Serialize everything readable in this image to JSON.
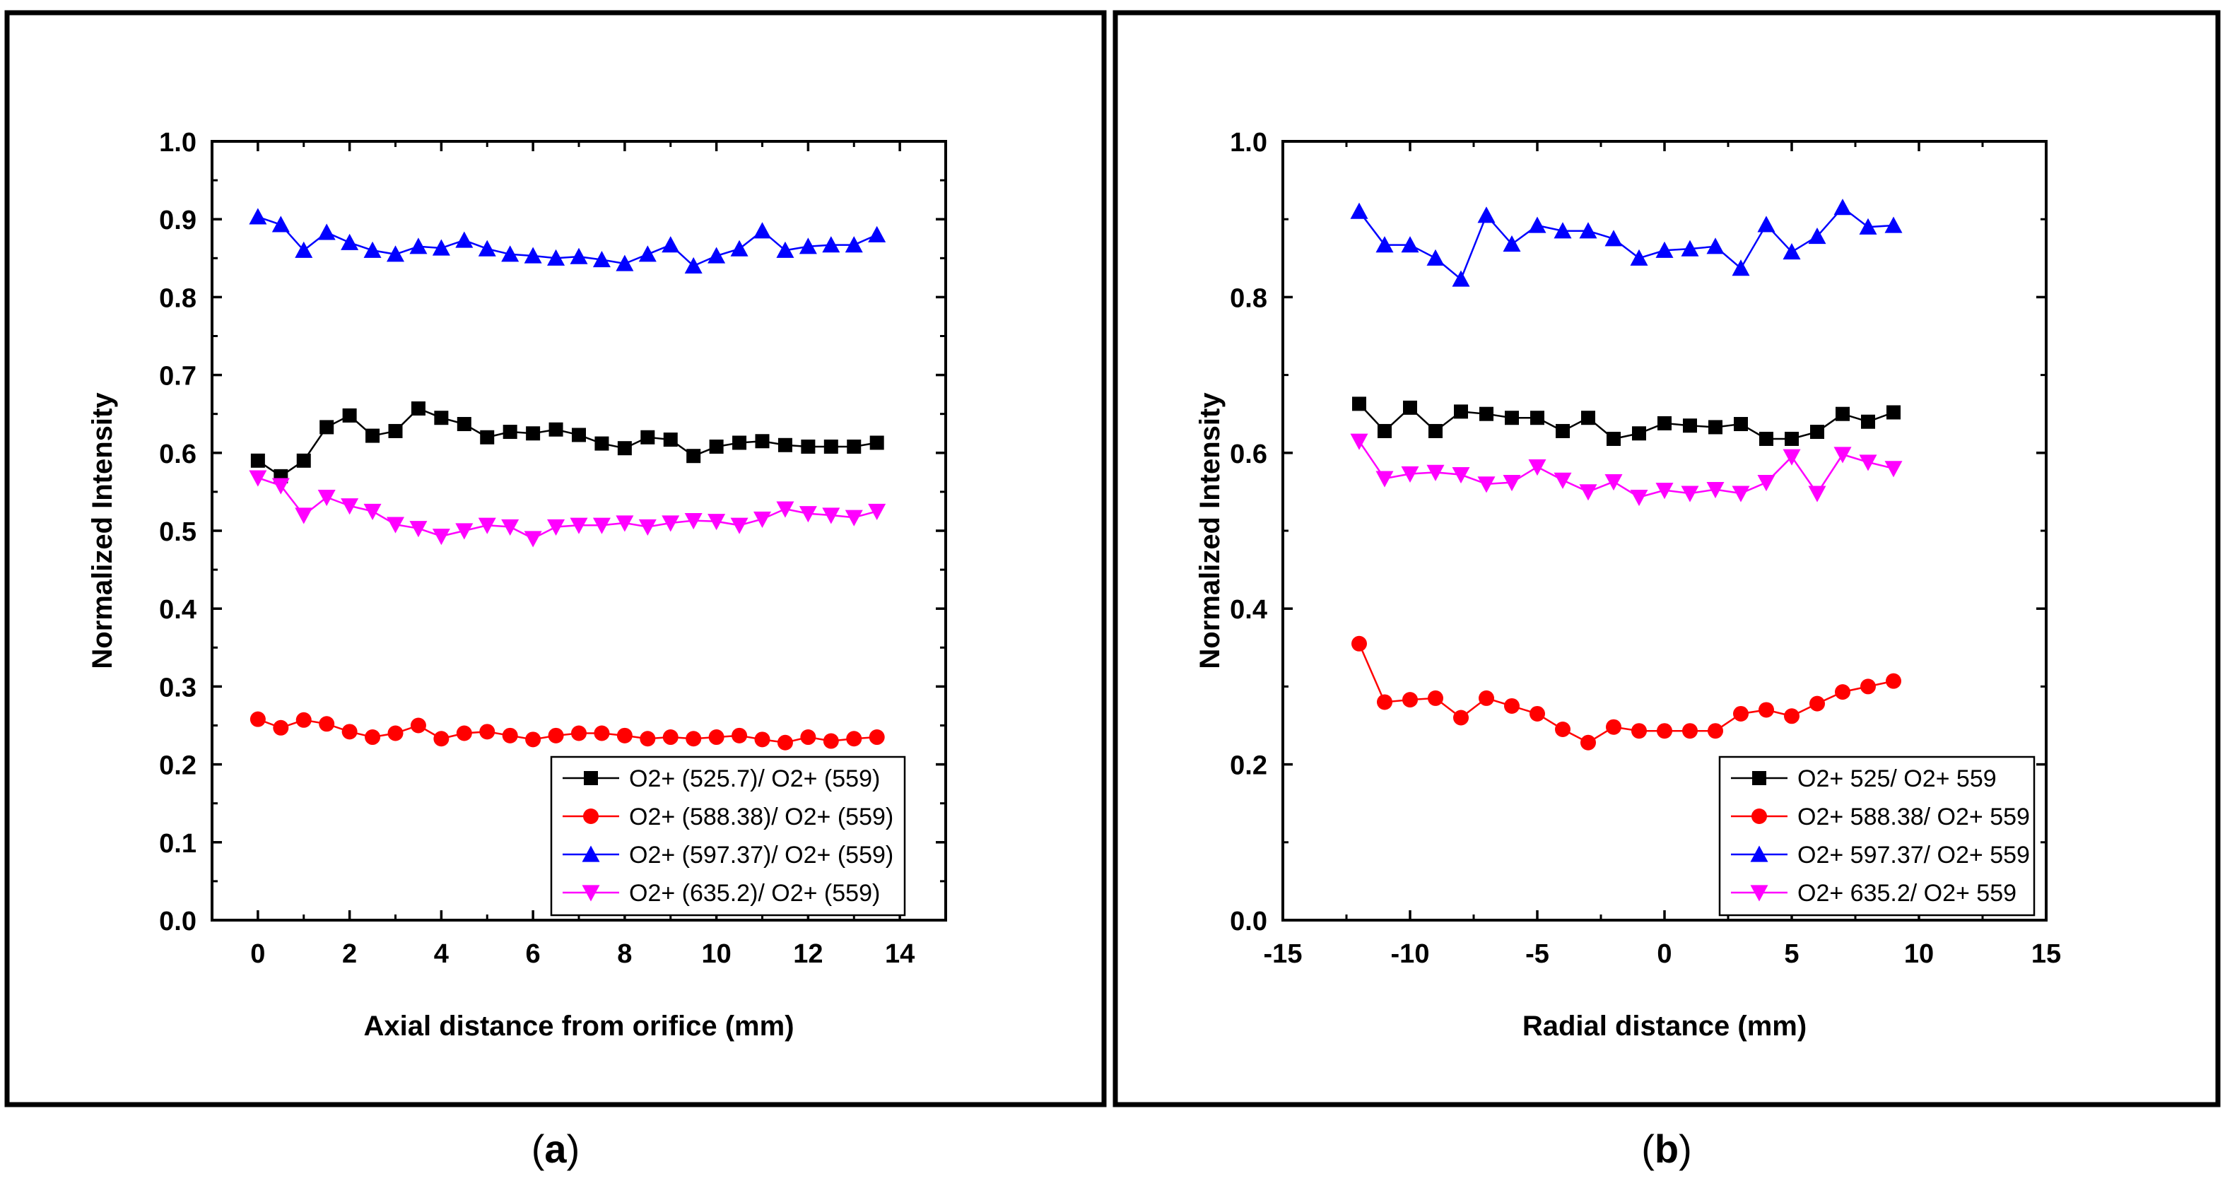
{
  "colors": {
    "frame": "#000000",
    "series": [
      "#000000",
      "#ff0000",
      "#0000ff",
      "#ff00ff"
    ]
  },
  "panel_labels": {
    "a_letter": "a",
    "b_letter": "b"
  },
  "chart_data": [
    {
      "type": "line",
      "panel": "a",
      "xlabel": "Axial distance from orifice (mm)",
      "ylabel": "Normalized Intensity",
      "xlim": [
        -1,
        15
      ],
      "ylim": [
        0,
        1
      ],
      "xticks": [
        0,
        2,
        4,
        6,
        8,
        10,
        12,
        14
      ],
      "xtick_labels": [
        "0",
        "2",
        "4",
        "6",
        "8",
        "10",
        "12",
        "14"
      ],
      "yticks": [
        0,
        0.1,
        0.2,
        0.3,
        0.4,
        0.5,
        0.6,
        0.7,
        0.8,
        0.9,
        1.0
      ],
      "ytick_labels": [
        "0.0",
        "0.1",
        "0.2",
        "0.3",
        "0.4",
        "0.5",
        "0.6",
        "0.7",
        "0.8",
        "0.9",
        "1.0"
      ],
      "legend_position": "bottom-right",
      "x": [
        0,
        0.5,
        1,
        1.5,
        2,
        2.5,
        3,
        3.5,
        4,
        4.5,
        5,
        5.5,
        6,
        6.5,
        7,
        7.5,
        8,
        8.5,
        9,
        9.5,
        10,
        10.5,
        11,
        11.5,
        12,
        12.5,
        13,
        13.5
      ],
      "series": [
        {
          "name": "O2+ (525.7)/ O2+ (559)",
          "marker": "square",
          "color": "#000000",
          "values": [
            0.59,
            0.57,
            0.59,
            0.633,
            0.648,
            0.622,
            0.628,
            0.657,
            0.645,
            0.637,
            0.62,
            0.627,
            0.625,
            0.63,
            0.623,
            0.612,
            0.606,
            0.62,
            0.617,
            0.596,
            0.608,
            0.613,
            0.615,
            0.61,
            0.608,
            0.608,
            0.608,
            0.613
          ]
        },
        {
          "name": "O2+ (588.38)/ O2+ (559)",
          "marker": "circle",
          "color": "#ff0000",
          "values": [
            0.258,
            0.247,
            0.257,
            0.252,
            0.242,
            0.235,
            0.24,
            0.25,
            0.233,
            0.24,
            0.242,
            0.237,
            0.232,
            0.237,
            0.24,
            0.24,
            0.237,
            0.233,
            0.235,
            0.233,
            0.235,
            0.237,
            0.232,
            0.228,
            0.235,
            0.23,
            0.233,
            0.235
          ]
        },
        {
          "name": "O2+ (597.37)/ O2+ (559)",
          "marker": "triangle-up",
          "color": "#0000ff",
          "values": [
            0.903,
            0.893,
            0.86,
            0.883,
            0.87,
            0.86,
            0.855,
            0.865,
            0.863,
            0.873,
            0.862,
            0.855,
            0.853,
            0.85,
            0.852,
            0.848,
            0.843,
            0.855,
            0.867,
            0.84,
            0.853,
            0.862,
            0.885,
            0.86,
            0.865,
            0.867,
            0.867,
            0.88
          ]
        },
        {
          "name": "O2+ (635.2)/ O2+ (559)",
          "marker": "triangle-down",
          "color": "#ff00ff",
          "values": [
            0.568,
            0.558,
            0.52,
            0.543,
            0.532,
            0.525,
            0.508,
            0.503,
            0.493,
            0.5,
            0.507,
            0.505,
            0.49,
            0.505,
            0.507,
            0.507,
            0.51,
            0.505,
            0.51,
            0.513,
            0.512,
            0.507,
            0.515,
            0.528,
            0.522,
            0.52,
            0.517,
            0.525
          ]
        }
      ]
    },
    {
      "type": "line",
      "panel": "b",
      "xlabel": "Radial distance (mm)",
      "ylabel": "Normalized Intensity",
      "xlim": [
        -15,
        15
      ],
      "ylim": [
        0,
        1
      ],
      "xticks": [
        -15,
        -10,
        -5,
        0,
        5,
        10,
        15
      ],
      "xtick_labels": [
        "-15",
        "-10",
        "-5",
        "0",
        "5",
        "10",
        "15"
      ],
      "yticks": [
        0,
        0.2,
        0.4,
        0.6,
        0.8,
        1.0
      ],
      "ytick_labels": [
        "0.0",
        "0.2",
        "0.4",
        "0.6",
        "0.8",
        "1.0"
      ],
      "legend_position": "bottom-right",
      "x": [
        -12,
        -11,
        -10,
        -9,
        -8,
        -7,
        -6,
        -5,
        -4,
        -3,
        -2,
        -1,
        0,
        1,
        2,
        3,
        4,
        5,
        6,
        7,
        8,
        9
      ],
      "series": [
        {
          "name": "O2+ 525/ O2+ 559",
          "marker": "square",
          "color": "#000000",
          "values": [
            0.663,
            0.628,
            0.658,
            0.628,
            0.653,
            0.65,
            0.645,
            0.645,
            0.628,
            0.645,
            0.618,
            0.625,
            0.638,
            0.635,
            0.633,
            0.637,
            0.618,
            0.618,
            0.627,
            0.65,
            0.64,
            0.652
          ]
        },
        {
          "name": "O2+ 588.38/ O2+ 559",
          "marker": "circle",
          "color": "#ff0000",
          "values": [
            0.355,
            0.28,
            0.283,
            0.285,
            0.26,
            0.285,
            0.275,
            0.265,
            0.245,
            0.228,
            0.248,
            0.243,
            0.243,
            0.243,
            0.243,
            0.265,
            0.27,
            0.262,
            0.278,
            0.293,
            0.3,
            0.307
          ]
        },
        {
          "name": "O2+ 597.37/ O2+ 559",
          "marker": "triangle-up",
          "color": "#0000ff",
          "values": [
            0.91,
            0.867,
            0.867,
            0.85,
            0.823,
            0.905,
            0.868,
            0.892,
            0.885,
            0.885,
            0.875,
            0.85,
            0.86,
            0.862,
            0.865,
            0.837,
            0.893,
            0.858,
            0.878,
            0.915,
            0.89,
            0.892
          ]
        },
        {
          "name": "O2+ 635.2/ O2+ 559",
          "marker": "triangle-down",
          "color": "#ff00ff",
          "values": [
            0.615,
            0.567,
            0.573,
            0.575,
            0.572,
            0.56,
            0.562,
            0.582,
            0.565,
            0.55,
            0.563,
            0.543,
            0.552,
            0.548,
            0.553,
            0.548,
            0.562,
            0.595,
            0.548,
            0.598,
            0.588,
            0.58
          ]
        }
      ]
    }
  ]
}
